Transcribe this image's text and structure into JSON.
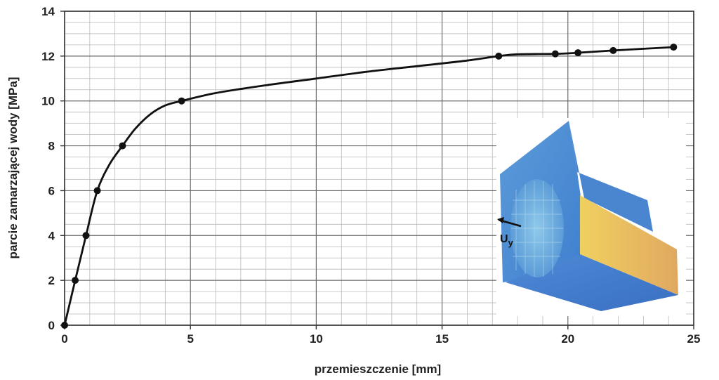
{
  "chart_data": {
    "type": "line",
    "xlabel": "przemieszczenie [mm]",
    "ylabel": "parcie zamarzającej wody [MPa]",
    "xlim": [
      0,
      25
    ],
    "ylim": [
      0,
      14
    ],
    "x_ticks": [
      0,
      5,
      10,
      15,
      20,
      25
    ],
    "y_ticks": [
      0,
      2,
      4,
      6,
      8,
      10,
      12,
      14
    ],
    "grid": true,
    "series": [
      {
        "x": [
          0,
          0.42,
          0.85,
          1.3,
          2.3,
          4.65,
          17.25,
          19.5,
          20.4,
          21.8,
          24.2
        ],
        "y": [
          0,
          2,
          4,
          6,
          8,
          10,
          12,
          12.1,
          12.15,
          12.25,
          12.4
        ]
      }
    ],
    "curve": {
      "x": [
        0,
        0.42,
        0.85,
        1.3,
        1.8,
        2.3,
        2.8,
        3.4,
        4.0,
        4.65,
        6,
        8,
        10,
        12,
        14,
        16,
        17.25,
        18,
        19.5,
        20.4,
        21.8,
        24.2
      ],
      "y": [
        0,
        2,
        4,
        6,
        7.2,
        8,
        8.75,
        9.4,
        9.8,
        10.0,
        10.35,
        10.7,
        11.0,
        11.3,
        11.55,
        11.8,
        12.0,
        12.08,
        12.1,
        12.15,
        12.25,
        12.4
      ]
    },
    "inset": {
      "label_main": "U",
      "label_sub": "y"
    }
  }
}
